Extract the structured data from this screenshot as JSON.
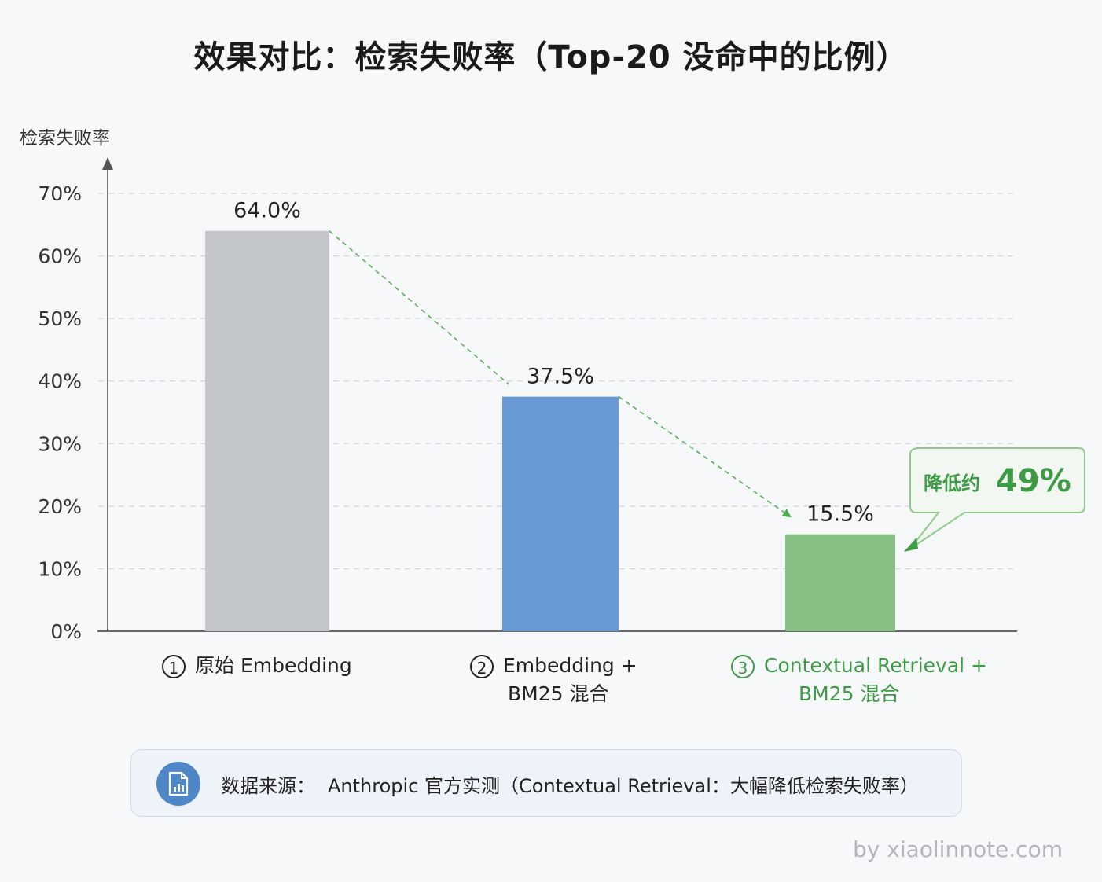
{
  "chart_data": {
    "type": "bar",
    "title": "效果对比：检索失败率（Top-20 没命中的比例）",
    "ylabel": "检索失败率",
    "ylim": [
      0,
      70
    ],
    "yticks": [
      "0%",
      "10%",
      "20%",
      "30%",
      "40%",
      "50%",
      "60%",
      "70%"
    ],
    "grid": true,
    "categories": [
      {
        "num": "1",
        "line1": "原始 Embedding",
        "line2": ""
      },
      {
        "num": "2",
        "line1": "Embedding +",
        "line2": "BM25 混合"
      },
      {
        "num": "3",
        "line1": "Contextual Retrieval +",
        "line2": "BM25 混合"
      }
    ],
    "values": [
      64.0,
      37.5,
      15.5
    ],
    "value_labels": [
      "64.0%",
      "37.5%",
      "15.5%"
    ],
    "colors": [
      "#c3c6ca",
      "#6a9ad6",
      "#85bf82"
    ],
    "annotation": {
      "prefix": "降低约",
      "value": "49%",
      "color": "#3f9a46"
    }
  },
  "source": {
    "label": "数据来源：",
    "text": "Anthropic 官方实测（Contextual Retrieval：大幅降低检索失败率）",
    "icon": "document-chart-icon"
  },
  "watermark": "by xiaolinnote.com"
}
